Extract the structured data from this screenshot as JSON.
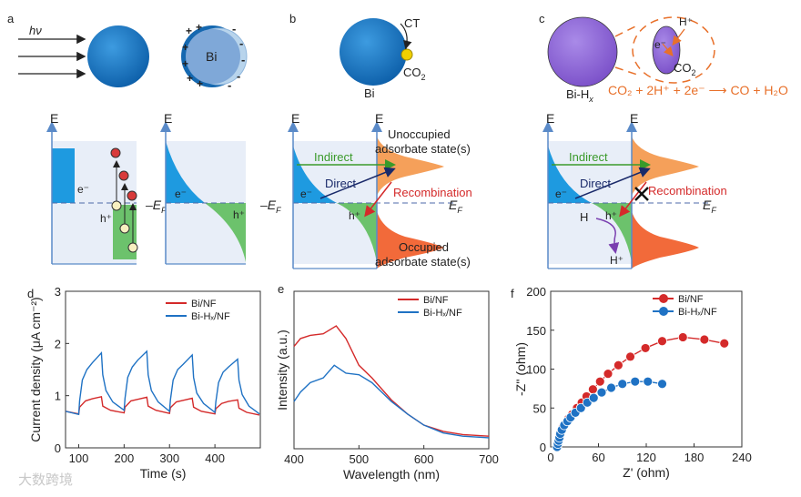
{
  "panels": {
    "a": "a",
    "b": "b",
    "c": "c",
    "d": "d",
    "e": "e",
    "f": "f"
  },
  "top": {
    "hv": "hν",
    "bi": "Bi",
    "ct": "CT",
    "co2": "CO",
    "co2_sub": "2",
    "bi_label": "Bi",
    "bihx": "Bi-H",
    "bihx_sub": "x",
    "h_plus": "H⁺",
    "e_minus": "e⁻",
    "equation": "CO₂ + 2H⁺ + 2e⁻ ⟶ CO + H₂O"
  },
  "energy": {
    "E": "E",
    "EF": "E",
    "EF_sub": "F",
    "e_minus": "e⁻",
    "h_plus": "h⁺",
    "dash": "–",
    "indirect": "Indirect",
    "direct": "Direct",
    "recombination": "Recombination",
    "unoccupied": "Unoccupied",
    "unoccupied2": "adsorbate state(s)",
    "occupied": "Occupied",
    "occupied2": "adsorbate state(s)",
    "H": "H",
    "Hplus": "H⁺"
  },
  "colors": {
    "blue": "#1f72c4",
    "red": "#d42a2a",
    "green": "#5cb85c",
    "orange": "#f5a05a",
    "purple": "#8e5fd0"
  },
  "chart_data": [
    {
      "type": "line",
      "panel": "d",
      "xlabel": "Time (s)",
      "ylabel": "Current density (μA cm⁻²)",
      "xlim": [
        71,
        500
      ],
      "ylim": [
        0,
        3
      ],
      "xticks": [
        100,
        200,
        300,
        400
      ],
      "yticks": [
        0,
        1,
        2,
        3
      ],
      "series": [
        {
          "name": "Bi/NF",
          "color": "#d42a2a",
          "points": [
            [
              71,
              0.7
            ],
            [
              100,
              0.65
            ],
            [
              102,
              0.78
            ],
            [
              115,
              0.9
            ],
            [
              130,
              0.94
            ],
            [
              150,
              0.98
            ],
            [
              153,
              0.8
            ],
            [
              170,
              0.72
            ],
            [
              200,
              0.67
            ],
            [
              202,
              0.78
            ],
            [
              215,
              0.9
            ],
            [
              230,
              0.93
            ],
            [
              250,
              0.97
            ],
            [
              253,
              0.8
            ],
            [
              270,
              0.72
            ],
            [
              300,
              0.66
            ],
            [
              302,
              0.77
            ],
            [
              315,
              0.88
            ],
            [
              330,
              0.91
            ],
            [
              350,
              0.95
            ],
            [
              353,
              0.78
            ],
            [
              370,
              0.7
            ],
            [
              400,
              0.65
            ],
            [
              402,
              0.75
            ],
            [
              415,
              0.85
            ],
            [
              430,
              0.89
            ],
            [
              450,
              0.92
            ],
            [
              453,
              0.76
            ],
            [
              470,
              0.68
            ],
            [
              498,
              0.63
            ]
          ]
        },
        {
          "name": "Bi-Hₓ/NF",
          "color": "#1f72c4",
          "points": [
            [
              71,
              0.7
            ],
            [
              100,
              0.64
            ],
            [
              102,
              0.9
            ],
            [
              108,
              1.3
            ],
            [
              118,
              1.5
            ],
            [
              130,
              1.63
            ],
            [
              150,
              1.82
            ],
            [
              153,
              1.4
            ],
            [
              160,
              1.1
            ],
            [
              175,
              0.88
            ],
            [
              200,
              0.72
            ],
            [
              202,
              0.95
            ],
            [
              208,
              1.35
            ],
            [
              218,
              1.55
            ],
            [
              230,
              1.68
            ],
            [
              250,
              1.85
            ],
            [
              253,
              1.4
            ],
            [
              260,
              1.1
            ],
            [
              275,
              0.88
            ],
            [
              300,
              0.7
            ],
            [
              302,
              0.92
            ],
            [
              308,
              1.3
            ],
            [
              318,
              1.5
            ],
            [
              330,
              1.6
            ],
            [
              350,
              1.78
            ],
            [
              353,
              1.35
            ],
            [
              360,
              1.05
            ],
            [
              375,
              0.85
            ],
            [
              400,
              0.68
            ],
            [
              402,
              0.88
            ],
            [
              408,
              1.25
            ],
            [
              418,
              1.45
            ],
            [
              430,
              1.55
            ],
            [
              450,
              1.7
            ],
            [
              453,
              1.3
            ],
            [
              460,
              1.02
            ],
            [
              475,
              0.8
            ],
            [
              498,
              0.65
            ]
          ]
        }
      ]
    },
    {
      "type": "line",
      "panel": "e",
      "xlabel": "Wavelength (nm)",
      "ylabel": "Intensity (a.u.)",
      "xlim": [
        400,
        700
      ],
      "ylim": [
        0,
        1
      ],
      "xticks": [
        400,
        500,
        600,
        700
      ],
      "series": [
        {
          "name": "Bi/NF",
          "color": "#d42a2a",
          "points": [
            [
              400,
              0.65
            ],
            [
              410,
              0.7
            ],
            [
              425,
              0.72
            ],
            [
              445,
              0.73
            ],
            [
              465,
              0.78
            ],
            [
              480,
              0.7
            ],
            [
              500,
              0.53
            ],
            [
              520,
              0.45
            ],
            [
              550,
              0.31
            ],
            [
              575,
              0.22
            ],
            [
              600,
              0.15
            ],
            [
              630,
              0.11
            ],
            [
              660,
              0.09
            ],
            [
              700,
              0.08
            ]
          ]
        },
        {
          "name": "Bi-Hₓ/NF",
          "color": "#1f72c4",
          "points": [
            [
              400,
              0.3
            ],
            [
              410,
              0.36
            ],
            [
              425,
              0.42
            ],
            [
              445,
              0.45
            ],
            [
              462,
              0.53
            ],
            [
              480,
              0.48
            ],
            [
              500,
              0.47
            ],
            [
              520,
              0.42
            ],
            [
              550,
              0.3
            ],
            [
              575,
              0.22
            ],
            [
              600,
              0.15
            ],
            [
              630,
              0.1
            ],
            [
              660,
              0.08
            ],
            [
              700,
              0.07
            ]
          ]
        }
      ]
    },
    {
      "type": "scatter",
      "panel": "f",
      "xlabel": "Z' (ohm)",
      "ylabel": "-Z'' (ohm)",
      "xlim": [
        0,
        240
      ],
      "ylim": [
        0,
        200
      ],
      "xticks": [
        0,
        60,
        120,
        180,
        240
      ],
      "yticks": [
        0,
        50,
        100,
        150,
        200
      ],
      "series": [
        {
          "name": "Bi/NF",
          "color": "#d42a2a",
          "points": [
            [
              8,
              0
            ],
            [
              9,
              5
            ],
            [
              10,
              10
            ],
            [
              11,
              15
            ],
            [
              13,
              20
            ],
            [
              15,
              25
            ],
            [
              18,
              30
            ],
            [
              22,
              36
            ],
            [
              27,
              42
            ],
            [
              33,
              50
            ],
            [
              39,
              57
            ],
            [
              45,
              65
            ],
            [
              53,
              74
            ],
            [
              62,
              84
            ],
            [
              72,
              94
            ],
            [
              85,
              105
            ],
            [
              100,
              116
            ],
            [
              119,
              127
            ],
            [
              140,
              136
            ],
            [
              166,
              141
            ],
            [
              193,
              138
            ],
            [
              218,
              133
            ]
          ]
        },
        {
          "name": "Bi-Hₓ/NF",
          "color": "#1f72c4",
          "points": [
            [
              8,
              0
            ],
            [
              9,
              4
            ],
            [
              10,
              8
            ],
            [
              11,
              12
            ],
            [
              12,
              17
            ],
            [
              14,
              22
            ],
            [
              17,
              28
            ],
            [
              21,
              33
            ],
            [
              25,
              38
            ],
            [
              31,
              44
            ],
            [
              38,
              50
            ],
            [
              46,
              57
            ],
            [
              54,
              63
            ],
            [
              64,
              70
            ],
            [
              76,
              76
            ],
            [
              90,
              81
            ],
            [
              106,
              84
            ],
            [
              122,
              84
            ],
            [
              140,
              81
            ]
          ]
        }
      ]
    }
  ],
  "watermark": "大数跨境"
}
